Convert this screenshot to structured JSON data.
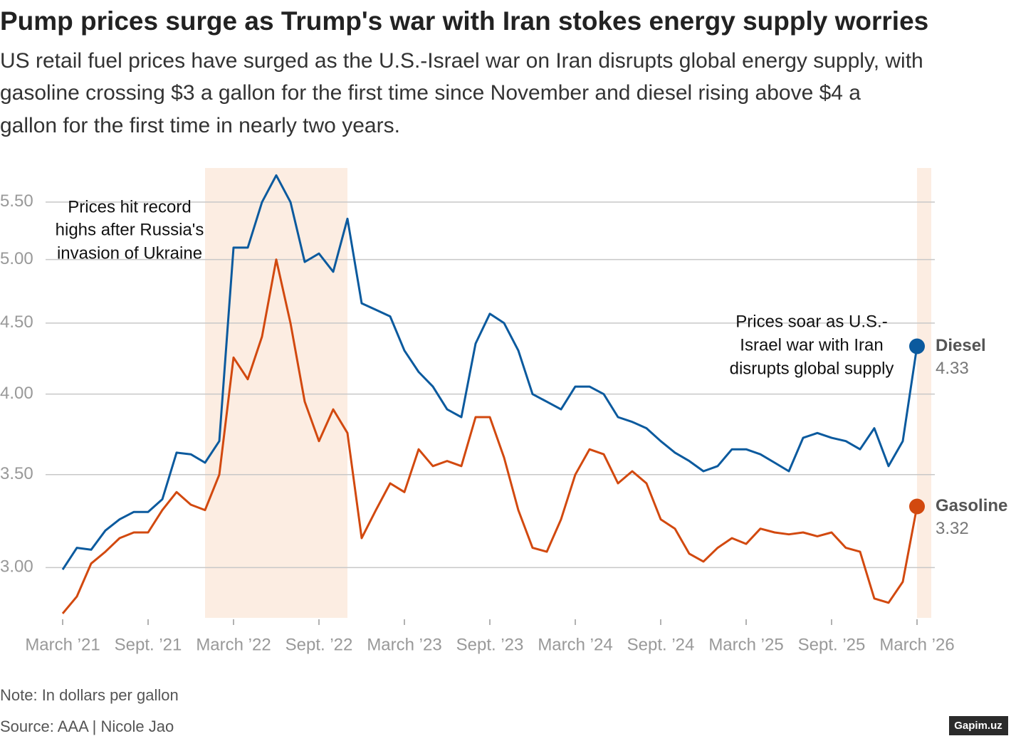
{
  "chart_data": {
    "type": "line",
    "title": "Pump prices surge as Trump's war with Iran stokes energy supply worries",
    "subtitle": [
      "US retail fuel prices have surged as the U.S.-Israel war on Iran disrupts global energy supply, with",
      "gasoline crossing $3 a gallon for the first time since November and diesel rising above $4 a",
      "gallon for the first time in nearly two years."
    ],
    "x": [
      "2021-03",
      "2021-04",
      "2021-05",
      "2021-06",
      "2021-07",
      "2021-08",
      "2021-09",
      "2021-10",
      "2021-11",
      "2021-12",
      "2022-01",
      "2022-02",
      "2022-03",
      "2022-04",
      "2022-05",
      "2022-06",
      "2022-07",
      "2022-08",
      "2022-09",
      "2022-10",
      "2022-11",
      "2022-12",
      "2023-01",
      "2023-02",
      "2023-03",
      "2023-04",
      "2023-05",
      "2023-06",
      "2023-07",
      "2023-08",
      "2023-09",
      "2023-10",
      "2023-11",
      "2023-12",
      "2024-01",
      "2024-02",
      "2024-03",
      "2024-04",
      "2024-05",
      "2024-06",
      "2024-07",
      "2024-08",
      "2024-09",
      "2024-10",
      "2024-11",
      "2024-12",
      "2025-01",
      "2025-02",
      "2025-03",
      "2025-04",
      "2025-05",
      "2025-06",
      "2025-07",
      "2025-08",
      "2025-09",
      "2025-10",
      "2025-11",
      "2025-12",
      "2026-01",
      "2026-02",
      "2026-03"
    ],
    "series": [
      {
        "name": "Diesel",
        "color": "#0b5a9e",
        "values": [
          2.99,
          3.1,
          3.09,
          3.19,
          3.25,
          3.29,
          3.29,
          3.36,
          3.63,
          3.62,
          3.57,
          3.7,
          5.1,
          5.1,
          5.5,
          5.75,
          5.5,
          4.98,
          5.05,
          4.9,
          5.35,
          4.65,
          4.6,
          4.55,
          4.3,
          4.15,
          4.05,
          3.9,
          3.85,
          4.35,
          4.57,
          4.5,
          4.3,
          4.0,
          3.95,
          3.9,
          4.05,
          4.05,
          4.0,
          3.85,
          3.82,
          3.78,
          3.7,
          3.63,
          3.58,
          3.52,
          3.55,
          3.65,
          3.65,
          3.62,
          3.57,
          3.52,
          3.72,
          3.75,
          3.72,
          3.7,
          3.65,
          3.78,
          3.55,
          3.7,
          4.33
        ]
      },
      {
        "name": "Gasoline",
        "color": "#d2490f",
        "values": [
          2.78,
          2.86,
          3.02,
          3.08,
          3.15,
          3.18,
          3.18,
          3.3,
          3.4,
          3.33,
          3.3,
          3.5,
          4.25,
          4.1,
          4.4,
          5.0,
          4.5,
          3.95,
          3.7,
          3.9,
          3.75,
          3.15,
          3.3,
          3.45,
          3.4,
          3.65,
          3.55,
          3.58,
          3.55,
          3.85,
          3.85,
          3.6,
          3.3,
          3.1,
          3.08,
          3.25,
          3.5,
          3.65,
          3.62,
          3.45,
          3.52,
          3.45,
          3.25,
          3.2,
          3.07,
          3.03,
          3.1,
          3.15,
          3.12,
          3.2,
          3.18,
          3.17,
          3.18,
          3.16,
          3.18,
          3.1,
          3.08,
          2.85,
          2.83,
          2.93,
          3.32
        ]
      }
    ],
    "xlim": [
      "2021-03",
      "2026-04"
    ],
    "xticks": [
      {
        "value": "2021-03",
        "label": "March ’21"
      },
      {
        "value": "2021-09",
        "label": "Sept. ’21"
      },
      {
        "value": "2022-03",
        "label": "March ’22"
      },
      {
        "value": "2022-09",
        "label": "Sept. ’22"
      },
      {
        "value": "2023-03",
        "label": "March ’23"
      },
      {
        "value": "2023-09",
        "label": "Sept. ’23"
      },
      {
        "value": "2024-03",
        "label": "March ’24"
      },
      {
        "value": "2024-09",
        "label": "Sept. ’24"
      },
      {
        "value": "2025-03",
        "label": "March ’25"
      },
      {
        "value": "2025-09",
        "label": "Sept. ’25"
      },
      {
        "value": "2026-03",
        "label": "March ’26"
      }
    ],
    "ylim": [
      2.76,
      5.82
    ],
    "yticks": [
      {
        "value": 3,
        "label": "3.00"
      },
      {
        "value": 3.5,
        "label": "3.50"
      },
      {
        "value": 4,
        "label": "4.00"
      },
      {
        "value": 4.5,
        "label": "4.50"
      },
      {
        "value": 5,
        "label": "5.00"
      },
      {
        "value": 5.5,
        "label": "5.50"
      }
    ],
    "log_scale": true,
    "grid": true,
    "shaded": [
      {
        "start": "2022-01",
        "end": "2022-11"
      },
      {
        "start": "2026-03",
        "end": "2026-04"
      }
    ],
    "annotations": [
      [
        "Prices hit record",
        "highs after Russia's",
        "invasion of Ukraine"
      ],
      [
        "Prices soar as U.S.-",
        "Israel war with Iran",
        "disrupts global supply"
      ]
    ],
    "note": "Note: In dollars per gallon",
    "source": "Source: AAA | Nicole Jao"
  },
  "watermark": "Gapim.uz"
}
